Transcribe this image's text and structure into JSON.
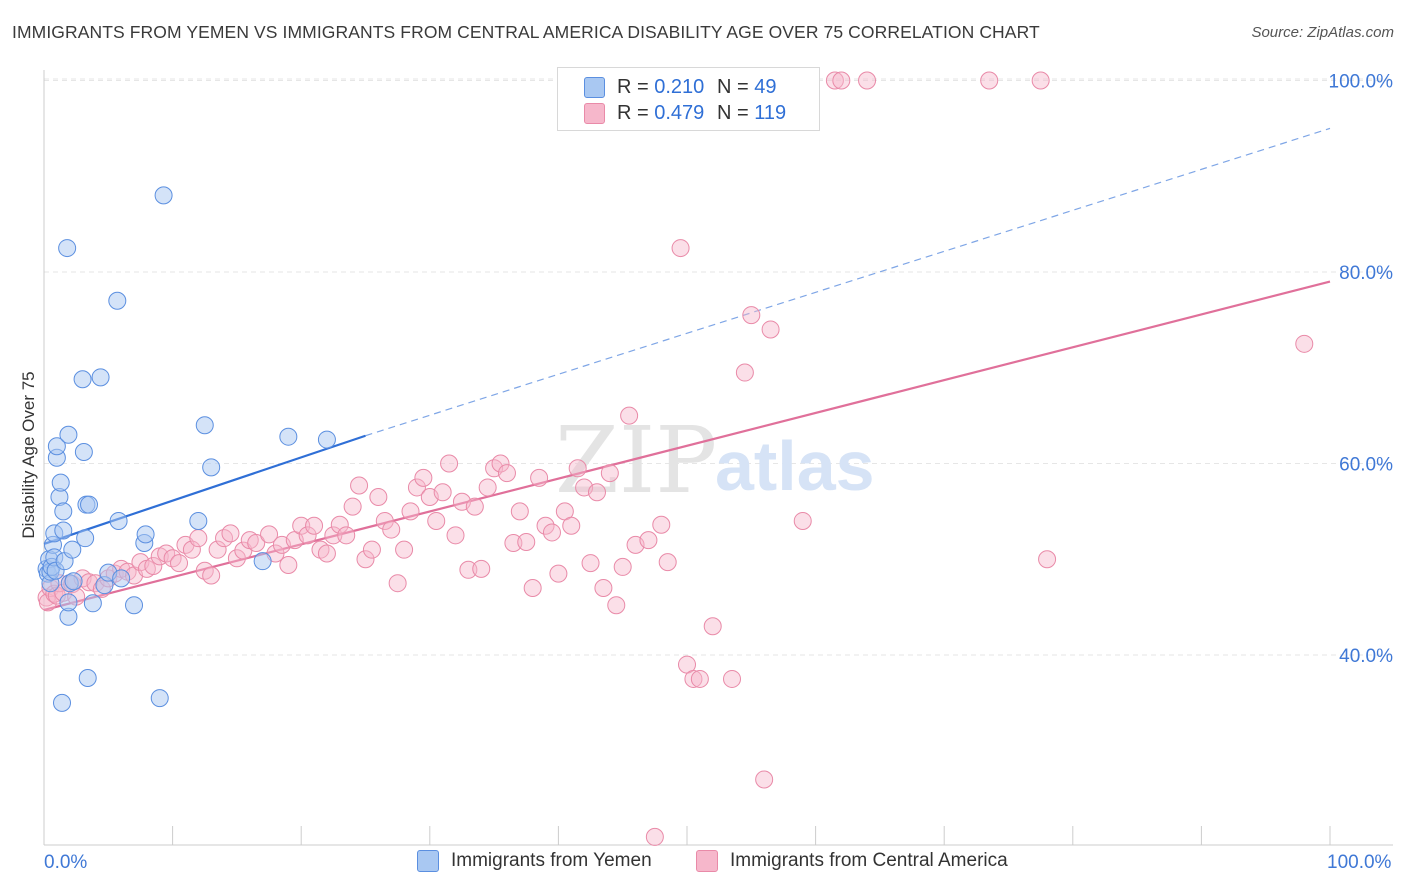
{
  "title": "IMMIGRANTS FROM YEMEN VS IMMIGRANTS FROM CENTRAL AMERICA DISABILITY AGE OVER 75 CORRELATION CHART",
  "source": "Source: ZipAtlas.com",
  "legend": {
    "yemen": {
      "r_label": "R =",
      "r_value": "0.210",
      "n_label": "N =",
      "n_value": "49"
    },
    "central": {
      "r_label": "R =",
      "r_value": "0.479",
      "n_label": "N =",
      "n_value": "119"
    }
  },
  "bottom_legend": {
    "yemen_label": "Immigrants from Yemen",
    "central_label": "Immigrants from Central America"
  },
  "x_axis": {
    "min_label": "0.0%",
    "max_label": "100.0%"
  },
  "colors": {
    "yemen_fill": "#a9c8f2",
    "yemen_stroke": "#5b8fe0",
    "yemen_line": "#2f6fd6",
    "central_fill": "#f6b7cb",
    "central_stroke": "#e98aa8",
    "central_line": "#e0709a",
    "axis_text": "#3f78d6",
    "grid": "#e6e6e6"
  },
  "chart_data": {
    "type": "scatter",
    "title": "IMMIGRANTS FROM YEMEN VS IMMIGRANTS FROM CENTRAL AMERICA DISABILITY AGE OVER 75 CORRELATION CHART",
    "xlabel": "",
    "ylabel": "Disability Age Over 75",
    "xlim": [
      0,
      100
    ],
    "ylim": [
      19,
      102
    ],
    "y_ticks": [
      {
        "value": 40,
        "label": "40.0%"
      },
      {
        "value": 60,
        "label": "60.0%"
      },
      {
        "value": 80,
        "label": "80.0%"
      },
      {
        "value": 100,
        "label": "100.0%"
      }
    ],
    "grid": true,
    "watermark": {
      "zip": "ZIP",
      "atlas": "atlas"
    },
    "series": [
      {
        "name": "Immigrants from Yemen",
        "points": [
          [
            0.2,
            49
          ],
          [
            0.3,
            48.5
          ],
          [
            0.4,
            50
          ],
          [
            0.5,
            47.5
          ],
          [
            0.5,
            48.7
          ],
          [
            0.6,
            49.2
          ],
          [
            0.7,
            51.5
          ],
          [
            0.8,
            52.7
          ],
          [
            0.8,
            50.2
          ],
          [
            0.9,
            48.8
          ],
          [
            1.0,
            60.6
          ],
          [
            1.0,
            61.8
          ],
          [
            1.2,
            56.5
          ],
          [
            1.3,
            58
          ],
          [
            1.4,
            35
          ],
          [
            1.5,
            53
          ],
          [
            1.5,
            55
          ],
          [
            1.6,
            49.8
          ],
          [
            1.8,
            82.5
          ],
          [
            1.9,
            63
          ],
          [
            1.9,
            44
          ],
          [
            1.9,
            45.5
          ],
          [
            2.0,
            47.5
          ],
          [
            2.2,
            51
          ],
          [
            2.3,
            47.7
          ],
          [
            3.0,
            68.8
          ],
          [
            3.1,
            61.2
          ],
          [
            3.2,
            52.2
          ],
          [
            3.3,
            55.7
          ],
          [
            3.4,
            37.6
          ],
          [
            3.5,
            55.7
          ],
          [
            3.8,
            45.4
          ],
          [
            4.4,
            69
          ],
          [
            4.7,
            47.3
          ],
          [
            5.0,
            48.6
          ],
          [
            5.7,
            77
          ],
          [
            5.8,
            54
          ],
          [
            6.0,
            48
          ],
          [
            7.0,
            45.2
          ],
          [
            7.8,
            51.7
          ],
          [
            7.9,
            52.6
          ],
          [
            9.0,
            35.5
          ],
          [
            9.3,
            88
          ],
          [
            12.0,
            54
          ],
          [
            12.5,
            64
          ],
          [
            13.0,
            59.6
          ],
          [
            17.0,
            49.8
          ],
          [
            19.0,
            62.8
          ],
          [
            22.0,
            62.5
          ]
        ],
        "trend": {
          "x": [
            0,
            25
          ],
          "y": [
            51.6,
            62.9
          ]
        },
        "trend_extension": {
          "x": [
            25,
            100
          ],
          "y": [
            62.9,
            95
          ]
        }
      },
      {
        "name": "Immigrants from Central America",
        "points": [
          [
            0.2,
            46
          ],
          [
            0.3,
            45.5
          ],
          [
            0.5,
            47
          ],
          [
            0.8,
            46.4
          ],
          [
            1.0,
            46.2
          ],
          [
            1.2,
            47.5
          ],
          [
            1.5,
            46.5
          ],
          [
            2.0,
            47.5
          ],
          [
            2.2,
            47.4
          ],
          [
            2.5,
            46.1
          ],
          [
            3.0,
            48
          ],
          [
            3.5,
            47.6
          ],
          [
            4.0,
            47.5
          ],
          [
            4.5,
            46.9
          ],
          [
            5.0,
            48
          ],
          [
            5.5,
            48.5
          ],
          [
            6.0,
            49
          ],
          [
            6.5,
            48.7
          ],
          [
            7.0,
            48.3
          ],
          [
            7.5,
            49.7
          ],
          [
            8.0,
            49
          ],
          [
            8.5,
            49.3
          ],
          [
            9.0,
            50.3
          ],
          [
            9.5,
            50.6
          ],
          [
            10.0,
            50.1
          ],
          [
            10.5,
            49.6
          ],
          [
            11.0,
            51.5
          ],
          [
            11.5,
            51
          ],
          [
            12.0,
            52.2
          ],
          [
            12.5,
            48.8
          ],
          [
            13.0,
            48.3
          ],
          [
            13.5,
            51
          ],
          [
            14.0,
            52.2
          ],
          [
            14.5,
            52.7
          ],
          [
            15.0,
            50.1
          ],
          [
            15.5,
            50.9
          ],
          [
            16.0,
            52
          ],
          [
            16.5,
            51.7
          ],
          [
            17.5,
            52.6
          ],
          [
            18.0,
            50.6
          ],
          [
            18.5,
            51.5
          ],
          [
            19.0,
            49.4
          ],
          [
            19.5,
            52
          ],
          [
            20.0,
            53.5
          ],
          [
            20.5,
            52.5
          ],
          [
            21.0,
            53.5
          ],
          [
            21.5,
            51
          ],
          [
            22.0,
            50.6
          ],
          [
            22.5,
            52.5
          ],
          [
            23.0,
            53.6
          ],
          [
            23.5,
            52.5
          ],
          [
            24.0,
            55.5
          ],
          [
            24.5,
            57.7
          ],
          [
            25.0,
            50
          ],
          [
            25.5,
            51
          ],
          [
            26.0,
            56.5
          ],
          [
            26.5,
            54
          ],
          [
            27.0,
            53.1
          ],
          [
            27.5,
            47.5
          ],
          [
            28.0,
            51
          ],
          [
            28.5,
            55
          ],
          [
            29.0,
            57.5
          ],
          [
            29.5,
            58.5
          ],
          [
            30.0,
            56.5
          ],
          [
            30.5,
            54
          ],
          [
            31.0,
            57
          ],
          [
            31.5,
            60
          ],
          [
            32.0,
            52.5
          ],
          [
            32.5,
            56
          ],
          [
            33.0,
            48.9
          ],
          [
            33.5,
            55.5
          ],
          [
            34.0,
            49
          ],
          [
            34.5,
            57.5
          ],
          [
            35.0,
            59.5
          ],
          [
            35.5,
            60
          ],
          [
            36.0,
            59
          ],
          [
            36.5,
            51.7
          ],
          [
            37.0,
            55
          ],
          [
            37.5,
            51.8
          ],
          [
            38.0,
            47
          ],
          [
            38.5,
            58.5
          ],
          [
            39.0,
            53.5
          ],
          [
            39.5,
            52.8
          ],
          [
            40.0,
            48.5
          ],
          [
            40.5,
            55
          ],
          [
            41.0,
            53.5
          ],
          [
            41.5,
            59.5
          ],
          [
            42.0,
            57.5
          ],
          [
            42.5,
            49.6
          ],
          [
            43.0,
            57
          ],
          [
            43.5,
            47
          ],
          [
            44.0,
            59
          ],
          [
            44.5,
            45.2
          ],
          [
            45.0,
            49.2
          ],
          [
            45.5,
            65
          ],
          [
            46.0,
            51.5
          ],
          [
            47.0,
            52
          ],
          [
            47.5,
            21
          ],
          [
            48.0,
            53.6
          ],
          [
            48.5,
            49.7
          ],
          [
            50.0,
            39
          ],
          [
            50.5,
            37.5
          ],
          [
            51.0,
            37.5
          ],
          [
            52.0,
            43
          ],
          [
            53.5,
            37.5
          ],
          [
            56.0,
            27
          ],
          [
            56.5,
            74
          ],
          [
            59.5,
            100
          ],
          [
            61.5,
            100
          ],
          [
            62.0,
            100
          ],
          [
            64.0,
            100
          ],
          [
            73.5,
            100
          ],
          [
            77.5,
            100
          ],
          [
            98.0,
            72.5
          ],
          [
            49.5,
            82.5
          ],
          [
            55.0,
            75.5
          ],
          [
            57.0,
            100
          ],
          [
            47.0,
            100
          ],
          [
            54.5,
            69.5
          ],
          [
            59.0,
            54
          ],
          [
            78.0,
            50
          ]
        ],
        "trend": {
          "x": [
            0,
            100
          ],
          "y": [
            44.7,
            79
          ]
        }
      }
    ]
  }
}
